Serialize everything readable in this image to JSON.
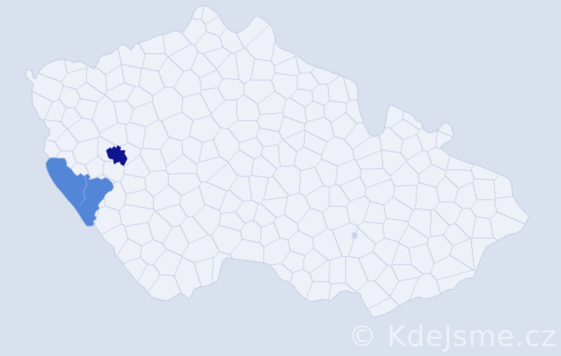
{
  "map": {
    "label": "czech-republic-municipality-map",
    "background_color": "#d9e1ee",
    "region_fill_color": "#eef1f8",
    "region_border_color": "#c8cfe6",
    "country_outline_color": "#bdc7e0",
    "highlighted_regions": [
      {
        "name": "dark-highlighted-region",
        "color": "#10158f"
      },
      {
        "name": "light-highlighted-region",
        "color": "#5486d8"
      }
    ],
    "minor_region": {
      "name": "small-gray-region",
      "color": "#ccd3e6"
    }
  },
  "watermark": {
    "text": "© KdeJsme.cz",
    "color": "#edf1f8"
  }
}
